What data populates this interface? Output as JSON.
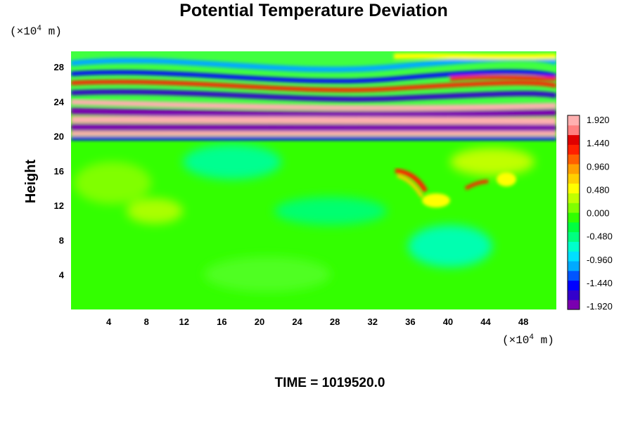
{
  "chart_data": {
    "type": "heatmap",
    "title": "Potential Temperature Deviation",
    "ylabel": "Height",
    "y_unit": {
      "prefix": "(×10",
      "exp": "4",
      "suffix": " m)"
    },
    "x_unit": {
      "prefix": "(×10",
      "exp": "4",
      "suffix": " m)"
    },
    "xlim": [
      0,
      51.5
    ],
    "ylim": [
      0,
      29.8
    ],
    "x_ticks": [
      4,
      8,
      12,
      16,
      20,
      24,
      28,
      32,
      36,
      40,
      44,
      48
    ],
    "y_ticks": [
      4,
      8,
      12,
      16,
      20,
      24,
      28
    ],
    "colorbar": {
      "min": -1.92,
      "max": 1.92,
      "tick_labels": [
        "1.920",
        "1.440",
        "0.960",
        "0.480",
        "0.000",
        "-0.480",
        "-0.960",
        "-1.440",
        "-1.920"
      ],
      "colors": [
        "#7a00b0",
        "#3300cc",
        "#0000ff",
        "#0055ff",
        "#00aaff",
        "#00e0ff",
        "#00ffcc",
        "#00ff80",
        "#00ff40",
        "#30ff00",
        "#80ff00",
        "#c0ff00",
        "#ffff00",
        "#ffd000",
        "#ffa000",
        "#ff6000",
        "#ff2000",
        "#e00000",
        "#ff8080",
        "#ffb0b0"
      ]
    },
    "field_notes": {
      "stratosphere_bands": "alternating strong positive/negative horizontal bands between heights 19 and 25, wavy oblique structures 24-30",
      "troposphere": "mostly near-zero values below 19 with a few positive anomalies around x 34-44, y 13-17"
    }
  },
  "footer": {
    "time_label": "TIME = 1019520.0"
  }
}
